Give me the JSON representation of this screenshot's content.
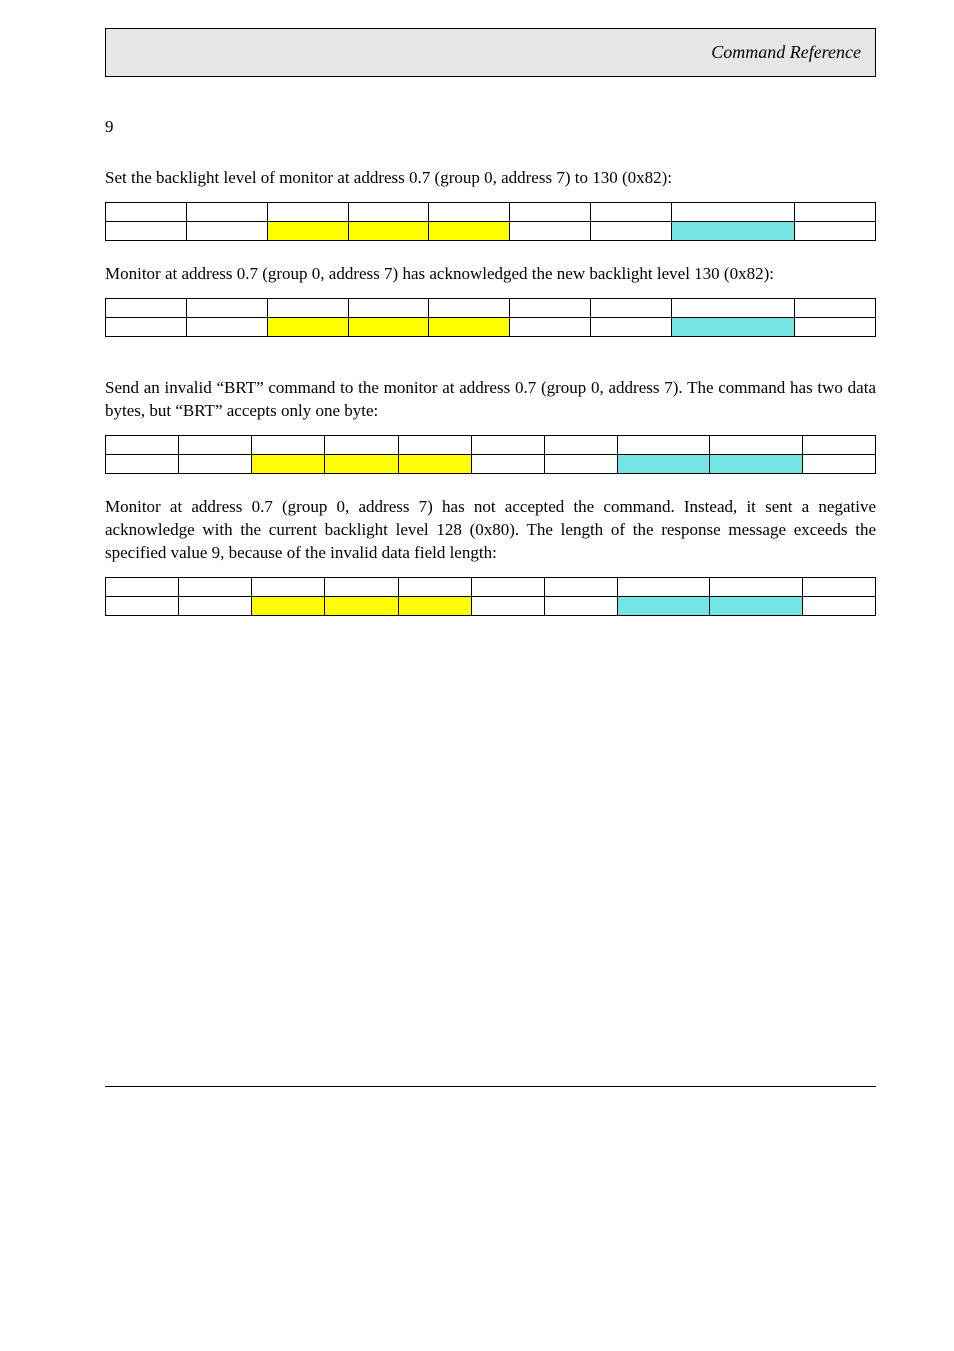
{
  "header": {
    "title": "Command Reference"
  },
  "page_number": "9",
  "p1": "Set the backlight level of monitor at address 0.7 (group 0, address 7) to 130 (0x82):",
  "p2": "Monitor at address 0.7 (group 0, address 7) has acknowledged the new backlight level 130 (0x82):",
  "p3": "Send an invalid “BRT” command to the monitor at address 0.7 (group 0, address 7). The command has two data bytes, but “BRT” accepts only one byte:",
  "p4": "Monitor at address 0.7 (group 0, address 7) has not accepted the command. Instead, it sent a negative acknowledge with the current backlight level 128 (0x80). The length of the response message exceeds the specified value 9, because of the invalid data field length:",
  "tables": {
    "t1": {
      "cols": 9,
      "col_widths_pct": [
        10.5,
        10.5,
        10.5,
        10.5,
        10.5,
        10.5,
        10.5,
        16,
        10.5
      ],
      "row2_colors": [
        "",
        "",
        "hl-yellow",
        "hl-yellow",
        "hl-yellow",
        "",
        "",
        "hl-cyan",
        ""
      ]
    },
    "t2": {
      "cols": 9,
      "col_widths_pct": [
        10.5,
        10.5,
        10.5,
        10.5,
        10.5,
        10.5,
        10.5,
        16,
        10.5
      ],
      "row2_colors": [
        "",
        "",
        "hl-yellow",
        "hl-yellow",
        "hl-yellow",
        "",
        "",
        "hl-cyan",
        ""
      ]
    },
    "t3": {
      "cols": 10,
      "col_widths_pct": [
        9.5,
        9.5,
        9.5,
        9.5,
        9.5,
        9.5,
        9.5,
        12,
        12,
        9.5
      ],
      "row2_colors": [
        "",
        "",
        "hl-yellow",
        "hl-yellow",
        "hl-yellow",
        "",
        "",
        "hl-cyan",
        "hl-cyan",
        ""
      ]
    },
    "t4": {
      "cols": 10,
      "col_widths_pct": [
        9.5,
        9.5,
        9.5,
        9.5,
        9.5,
        9.5,
        9.5,
        12,
        12,
        9.5
      ],
      "row2_colors": [
        "",
        "",
        "hl-yellow",
        "hl-yellow",
        "hl-yellow",
        "",
        "",
        "hl-cyan",
        "hl-cyan",
        ""
      ]
    }
  },
  "colors": {
    "header_bg": "#e6e6e6",
    "highlight_yellow": "#ffff00",
    "highlight_cyan": "#73e5e5",
    "border": "#000000",
    "text": "#000000",
    "background": "#ffffff"
  },
  "typography": {
    "body_fontsize_pt": 12,
    "header_fontsize_pt": 13,
    "font_family": "Garamond serif"
  }
}
